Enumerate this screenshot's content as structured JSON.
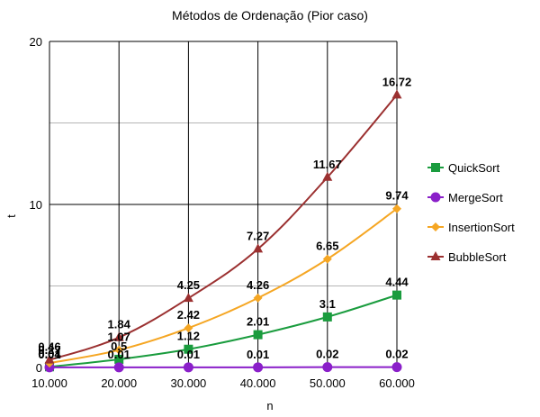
{
  "chart_data": {
    "type": "line",
    "title": "Métodos de Ordenação (Pior caso)",
    "xlabel": "n",
    "ylabel": "t",
    "categories": [
      "10.000",
      "20.000",
      "30.000",
      "40.000",
      "50.000",
      "60.000"
    ],
    "ylim": [
      0,
      20
    ],
    "yticks": [
      "0",
      "10",
      "20"
    ],
    "grid": true,
    "legend_position": "right",
    "series": [
      {
        "name": "QuickSort",
        "color": "#1a9c3e",
        "marker": "square",
        "values": [
          0.04,
          0.5,
          1.12,
          2.01,
          3.1,
          4.44
        ],
        "labels": [
          "0.04",
          "0.5",
          "1.12",
          "2.01",
          "3.1",
          "4.44"
        ]
      },
      {
        "name": "MergeSort",
        "color": "#8a1fc9",
        "marker": "circle",
        "values": [
          0.01,
          0.01,
          0.01,
          0.01,
          0.02,
          0.02
        ],
        "labels": [
          "0.01",
          "0.01",
          "0.01",
          "0.01",
          "0.02",
          "0.02"
        ]
      },
      {
        "name": "InsertionSort",
        "color": "#f5a623",
        "marker": "diamond",
        "values": [
          0.27,
          1.07,
          2.42,
          4.26,
          6.65,
          9.74
        ],
        "labels": [
          "0.27",
          "1.07",
          "2.42",
          "4.26",
          "6.65",
          "9.74"
        ]
      },
      {
        "name": "BubbleSort",
        "color": "#9b3030",
        "marker": "triangle",
        "values": [
          0.46,
          1.84,
          4.25,
          7.27,
          11.67,
          16.72
        ],
        "labels": [
          "0.46",
          "1.84",
          "4.25",
          "7.27",
          "11.67",
          "16.72"
        ]
      }
    ]
  }
}
